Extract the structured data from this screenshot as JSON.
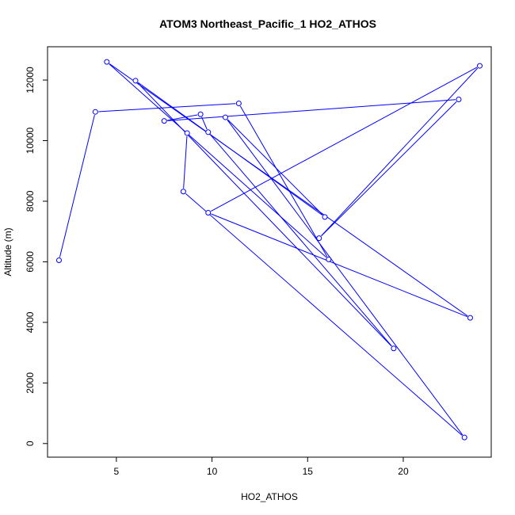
{
  "chart_data": {
    "type": "scatter",
    "title": "ATOM3 Northeast_Pacific_1 HO2_ATHOS",
    "xlabel": "HO2_ATHOS",
    "ylabel": "Altitude (m)",
    "xlim": [
      1.4,
      24.6
    ],
    "ylim": [
      -450,
      13100
    ],
    "xticks": [
      5,
      10,
      15,
      20
    ],
    "yticks": [
      0,
      2000,
      4000,
      6000,
      8000,
      10000,
      12000
    ],
    "grid": false,
    "legend": "none",
    "color": "#0000ff",
    "series": [
      {
        "points": [
          {
            "x": 2.0,
            "y": 6050
          },
          {
            "x": 3.9,
            "y": 10950
          },
          {
            "x": 11.4,
            "y": 11230
          },
          {
            "x": 16.1,
            "y": 6080
          },
          {
            "x": 4.5,
            "y": 12600
          },
          {
            "x": 23.5,
            "y": 4150
          },
          {
            "x": 9.8,
            "y": 7620
          },
          {
            "x": 24.0,
            "y": 12470
          },
          {
            "x": 15.6,
            "y": 6780
          },
          {
            "x": 22.9,
            "y": 11360
          },
          {
            "x": 7.5,
            "y": 10650
          },
          {
            "x": 9.4,
            "y": 10870
          },
          {
            "x": 9.8,
            "y": 10280
          },
          {
            "x": 19.5,
            "y": 3140
          },
          {
            "x": 6.0,
            "y": 11980
          },
          {
            "x": 15.9,
            "y": 7480
          },
          {
            "x": 10.7,
            "y": 10770
          },
          {
            "x": 23.2,
            "y": 200
          },
          {
            "x": 8.5,
            "y": 8320
          },
          {
            "x": 8.7,
            "y": 10250
          }
        ]
      }
    ]
  }
}
